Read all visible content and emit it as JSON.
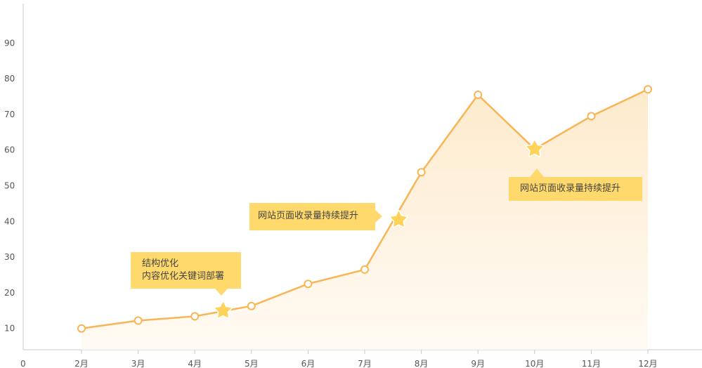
{
  "chart_data": {
    "type": "area",
    "title": "",
    "xlabel": "",
    "ylabel": "",
    "origin_label": "0",
    "x_labels": [
      "2月",
      "3月",
      "4月",
      "5月",
      "6月",
      "7月",
      "8月",
      "9月",
      "10月",
      "11月",
      "12月"
    ],
    "y_ticks": [
      10,
      20,
      30,
      40,
      50,
      60,
      70,
      80,
      90
    ],
    "ylim": [
      0,
      95
    ],
    "grid": false,
    "series": [
      {
        "values": [
          10,
          12.2,
          13.4,
          16.3,
          22.5,
          26.5,
          53.8,
          75.5,
          60.3,
          69.5,
          77
        ]
      }
    ],
    "colors": {
      "line": "#f8b555",
      "area": "#fde9c9",
      "marker_fill": "#ffffff",
      "star": "#ffd25a",
      "callout": "#ffd96b"
    },
    "annotations": [
      {
        "text": "结构优化\n内容优化关键词部署",
        "x_index": 2.5,
        "y": 15
      },
      {
        "text": "网站页面收录量持续提升",
        "x_index": 5.6,
        "y": 40.5
      },
      {
        "text": "网站页面收录量持续提升",
        "x_index": 8,
        "y": 60.3
      }
    ]
  },
  "callouts": {
    "c1_line1": "结构优化",
    "c1_line2": "内容优化关键词部署",
    "c2": "网站页面收录量持续提升",
    "c3": "网站页面收录量持续提升"
  }
}
